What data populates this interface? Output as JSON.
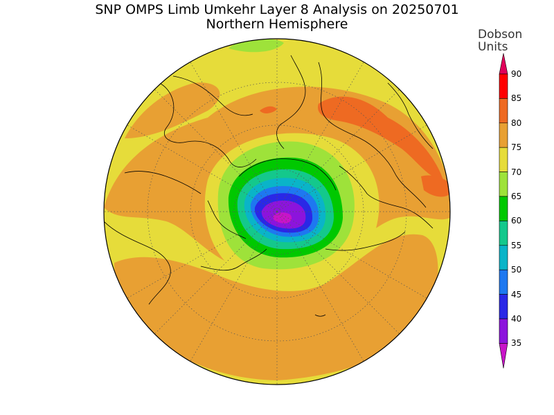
{
  "title": {
    "line1": "SNP OMPS Limb Umkehr Layer 8 Analysis on 20250701",
    "line2": "Northern Hemisphere"
  },
  "colorbar": {
    "title_line1": "Dobson",
    "title_line2": "Units",
    "ticks": [
      "90",
      "85",
      "80",
      "75",
      "70",
      "65",
      "60",
      "55",
      "50",
      "45",
      "40",
      "35"
    ],
    "colors": {
      "90": "#e0005a",
      "85": "#ff0000",
      "80": "#ee6a22",
      "75": "#e8a033",
      "70": "#e6dc3a",
      "65": "#9ee23a",
      "60": "#00c800",
      "55": "#14c88c",
      "50": "#0ab4c8",
      "45": "#1e78f0",
      "40": "#2a28e6",
      "35": "#8c14dc",
      "30": "#c814c8"
    }
  }
}
